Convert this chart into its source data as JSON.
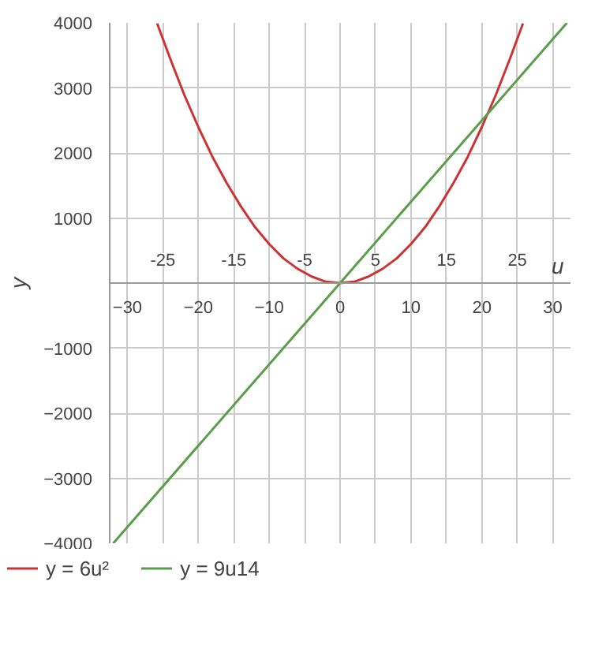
{
  "chart_data": {
    "type": "line",
    "xlabel": "u",
    "ylabel": "y",
    "series": [
      {
        "name": "y = 6u²",
        "color": "#cc3333",
        "x": [
          -25.8,
          -24,
          -22,
          -20,
          -18,
          -16,
          -14,
          -12,
          -10,
          -8,
          -6,
          -4,
          -2,
          0,
          2,
          4,
          6,
          8,
          10,
          12,
          14,
          16,
          18,
          20,
          22,
          24,
          25.8
        ],
        "values": [
          3990,
          3460,
          2900,
          2400,
          1940,
          1540,
          1180,
          860,
          600,
          380,
          220,
          100,
          20,
          0,
          20,
          100,
          220,
          380,
          600,
          860,
          1180,
          1540,
          1940,
          2400,
          2900,
          3460,
          3990
        ]
      },
      {
        "name": "y = 9u14",
        "color": "#5a9e4b",
        "x": [
          -32,
          0,
          32
        ],
        "values": [
          -4000,
          0,
          4000
        ]
      }
    ],
    "xlim": [
      -32.5,
      32.5
    ],
    "xticks": [
      -30,
      -20,
      -10,
      0,
      10,
      20,
      30
    ],
    "x2lim": [
      -32.5,
      32.5
    ],
    "x2ticks": [
      -25,
      -15,
      -5,
      5,
      15,
      25
    ],
    "ylim": [
      -4000,
      4000
    ],
    "yticks": [
      -4000,
      -3000,
      -2000,
      -1000,
      1000,
      2000,
      3000,
      4000
    ],
    "grid": true,
    "legend": "bottom",
    "line_style": "solid"
  }
}
